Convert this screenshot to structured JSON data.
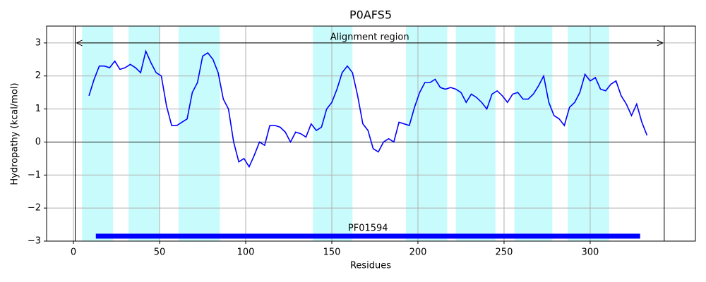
{
  "chart_data": {
    "type": "line",
    "title": "P0AFS5",
    "xlabel": "Residues",
    "ylabel": "Hydropathy (kcal/mol)",
    "xlim": [
      -15.6,
      361.1
    ],
    "ylim": [
      -3,
      3.51
    ],
    "xticks": [
      0,
      50,
      100,
      150,
      200,
      250,
      300
    ],
    "yticks": [
      {
        "value": -3,
        "label": "−3"
      },
      {
        "value": -2,
        "label": "−2"
      },
      {
        "value": -1,
        "label": "−1"
      },
      0,
      1,
      2,
      3
    ],
    "grid": true,
    "span_color": "#c8fcfc",
    "spans": [
      [
        5,
        23
      ],
      [
        32,
        50
      ],
      [
        61,
        85
      ],
      [
        139,
        162
      ],
      [
        193,
        217
      ],
      [
        222,
        245
      ],
      [
        256,
        278
      ],
      [
        287,
        311
      ]
    ],
    "vlines": [
      1,
      343
    ],
    "hline": 0,
    "annotation": {
      "text": "Alignment region",
      "start": 1,
      "end": 343,
      "y": 3
    },
    "domain": {
      "name": "PF01594",
      "start": 13,
      "end": 329,
      "y": -2.85,
      "color": "#0000ff"
    },
    "x": [
      9,
      12,
      15,
      18,
      21,
      24,
      27,
      30,
      33,
      36,
      39,
      42,
      45,
      48,
      51,
      54,
      57,
      60,
      63,
      66,
      69,
      72,
      75,
      78,
      81,
      84,
      87,
      90,
      93,
      96,
      99,
      102,
      105,
      108,
      111,
      114,
      117,
      120,
      123,
      126,
      129,
      132,
      135,
      138,
      141,
      144,
      147,
      150,
      153,
      156,
      159,
      162,
      165,
      168,
      171,
      174,
      177,
      180,
      183,
      186,
      189,
      192,
      195,
      198,
      201,
      204,
      207,
      210,
      213,
      216,
      219,
      222,
      225,
      228,
      231,
      234,
      237,
      240,
      243,
      246,
      249,
      252,
      255,
      258,
      261,
      264,
      267,
      270,
      273,
      276,
      279,
      282,
      285,
      288,
      291,
      294,
      297,
      300,
      303,
      306,
      309,
      312,
      315,
      318,
      321,
      324,
      327,
      330,
      333
    ],
    "series": [
      {
        "color": "#0000ff",
        "values": [
          1.4,
          1.9,
          2.3,
          2.3,
          2.25,
          2.45,
          2.2,
          2.25,
          2.35,
          2.25,
          2.1,
          2.75,
          2.4,
          2.1,
          2.0,
          1.1,
          0.5,
          0.5,
          0.6,
          0.7,
          1.5,
          1.8,
          2.6,
          2.7,
          2.5,
          2.1,
          1.3,
          1.0,
          0.0,
          -0.6,
          -0.5,
          -0.75,
          -0.4,
          0.0,
          -0.1,
          0.5,
          0.5,
          0.45,
          0.3,
          0.0,
          0.3,
          0.25,
          0.15,
          0.55,
          0.35,
          0.45,
          1.0,
          1.2,
          1.6,
          2.1,
          2.3,
          2.1,
          1.4,
          0.55,
          0.35,
          -0.2,
          -0.3,
          0.0,
          0.1,
          0.0,
          0.6,
          0.55,
          0.5,
          1.05,
          1.5,
          1.8,
          1.8,
          1.9,
          1.65,
          1.6,
          1.65,
          1.6,
          1.5,
          1.2,
          1.45,
          1.35,
          1.2,
          1.0,
          1.45,
          1.55,
          1.4,
          1.2,
          1.45,
          1.5,
          1.3,
          1.3,
          1.45,
          1.7,
          2.0,
          1.2,
          0.8,
          0.7,
          0.5,
          1.05,
          1.2,
          1.5,
          2.05,
          1.85,
          1.95,
          1.6,
          1.55,
          1.75,
          1.85,
          1.4,
          1.15,
          0.8,
          1.15,
          0.6,
          0.2
        ]
      }
    ]
  }
}
